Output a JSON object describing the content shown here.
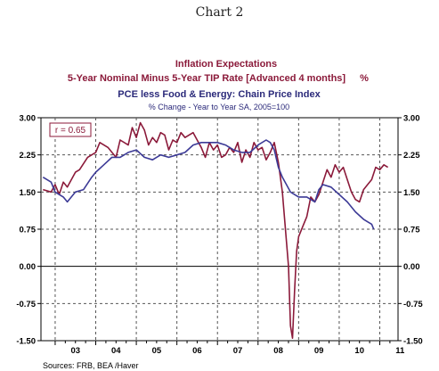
{
  "chart_label": "Chart 2",
  "chart_data": {
    "type": "line",
    "title": "Inflation Expectations",
    "subtitle_red": "5-Year Nominal Minus 5-Year TIP Rate [Advanced 4 months]",
    "subtitle_red_unit": "%",
    "subtitle_blue": "PCE less Food & Energy: Chain Price Index",
    "subtitle_blue_note": "% Change - Year to Year   SA, 2005=100",
    "annotation": "r = 0.65",
    "source": "Sources:  FRB, BEA /Haver",
    "xlim": [
      2002.65,
      2011.45
    ],
    "ylim": [
      -1.5,
      3.0
    ],
    "y_ticks": [
      "3.00",
      "2.25",
      "1.50",
      "0.75",
      "0.00",
      "-0.75",
      "-1.50"
    ],
    "x_tick_labels": [
      "03",
      "04",
      "05",
      "06",
      "07",
      "08",
      "09",
      "10",
      "11"
    ],
    "grid": true,
    "series": [
      {
        "color": "#8b1a3a",
        "x": [
          2002.7,
          2002.9,
          2003.0,
          2003.1,
          2003.2,
          2003.3,
          2003.5,
          2003.6,
          2003.8,
          2004.0,
          2004.1,
          2004.3,
          2004.5,
          2004.6,
          2004.8,
          2004.9,
          2005.0,
          2005.1,
          2005.2,
          2005.3,
          2005.4,
          2005.5,
          2005.6,
          2005.7,
          2005.8,
          2005.9,
          2006.0,
          2006.1,
          2006.2,
          2006.3,
          2006.4,
          2006.5,
          2006.6,
          2006.7,
          2006.8,
          2006.9,
          2007.0,
          2007.1,
          2007.2,
          2007.3,
          2007.4,
          2007.5,
          2007.6,
          2007.7,
          2007.8,
          2007.9,
          2008.0,
          2008.1,
          2008.2,
          2008.3,
          2008.4,
          2008.5,
          2008.6,
          2008.7,
          2008.75,
          2008.8,
          2008.85,
          2008.9,
          2008.95,
          2009.0,
          2009.1,
          2009.2,
          2009.3,
          2009.4,
          2009.5,
          2009.6,
          2009.7,
          2009.8,
          2009.9,
          2010.0,
          2010.1,
          2010.2,
          2010.3,
          2010.4,
          2010.5,
          2010.6,
          2010.7,
          2010.8,
          2010.9,
          2011.0,
          2011.1,
          2011.2
        ],
        "y": [
          1.55,
          1.5,
          1.65,
          1.45,
          1.7,
          1.6,
          1.9,
          1.95,
          2.2,
          2.3,
          2.5,
          2.4,
          2.2,
          2.55,
          2.45,
          2.8,
          2.6,
          2.9,
          2.75,
          2.45,
          2.6,
          2.5,
          2.7,
          2.65,
          2.35,
          2.55,
          2.5,
          2.7,
          2.6,
          2.65,
          2.7,
          2.55,
          2.4,
          2.2,
          2.5,
          2.35,
          2.45,
          2.2,
          2.25,
          2.4,
          2.3,
          2.5,
          2.1,
          2.35,
          2.2,
          2.5,
          2.35,
          2.4,
          2.15,
          2.3,
          2.5,
          2.1,
          1.5,
          0.5,
          0.0,
          -1.2,
          -1.45,
          -0.5,
          0.3,
          0.6,
          0.8,
          1.0,
          1.4,
          1.3,
          1.45,
          1.7,
          1.95,
          1.8,
          2.05,
          1.9,
          2.0,
          1.75,
          1.5,
          1.35,
          1.3,
          1.55,
          1.65,
          1.75,
          2.0,
          1.95,
          2.05,
          2.0
        ]
      },
      {
        "color": "#3c3a96",
        "x": [
          2002.7,
          2002.9,
          2003.0,
          2003.2,
          2003.3,
          2003.5,
          2003.7,
          2003.9,
          2004.0,
          2004.2,
          2004.4,
          2004.6,
          2004.8,
          2005.0,
          2005.2,
          2005.4,
          2005.6,
          2005.8,
          2006.0,
          2006.2,
          2006.4,
          2006.6,
          2006.8,
          2007.0,
          2007.2,
          2007.4,
          2007.6,
          2007.8,
          2008.0,
          2008.2,
          2008.3,
          2008.4,
          2008.5,
          2008.6,
          2008.7,
          2008.8,
          2009.0,
          2009.2,
          2009.4,
          2009.5,
          2009.6,
          2009.8,
          2010.0,
          2010.2,
          2010.4,
          2010.6,
          2010.7,
          2010.8,
          2010.85
        ],
        "y": [
          1.8,
          1.7,
          1.5,
          1.4,
          1.3,
          1.5,
          1.55,
          1.8,
          1.9,
          2.05,
          2.2,
          2.2,
          2.3,
          2.35,
          2.2,
          2.15,
          2.25,
          2.2,
          2.25,
          2.3,
          2.45,
          2.5,
          2.5,
          2.5,
          2.45,
          2.35,
          2.3,
          2.3,
          2.45,
          2.55,
          2.5,
          2.35,
          2.0,
          1.8,
          1.65,
          1.5,
          1.4,
          1.4,
          1.3,
          1.55,
          1.65,
          1.6,
          1.45,
          1.3,
          1.1,
          0.95,
          0.9,
          0.85,
          0.75
        ]
      }
    ]
  }
}
